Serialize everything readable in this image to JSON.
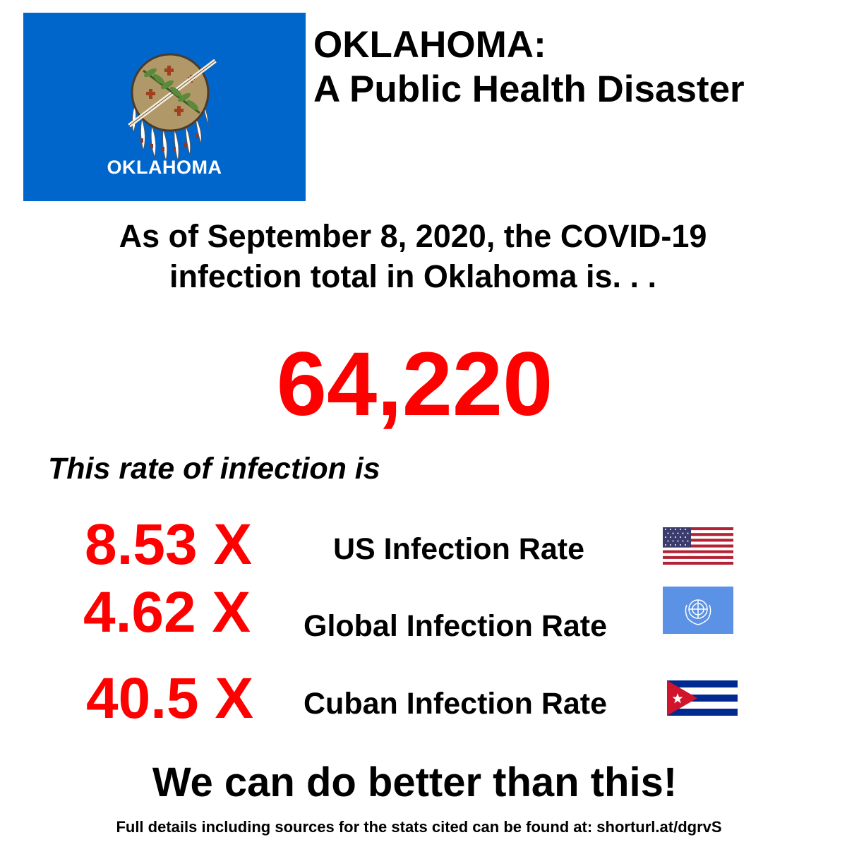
{
  "header": {
    "flag_caption": "OKLAHOMA",
    "title_line1": "OKLAHOMA:",
    "title_line2": "A Public Health Disaster"
  },
  "intro": {
    "line1": "As of September 8, 2020, the COVID-19",
    "line2": "infection total in Oklahoma is. . ."
  },
  "infection_total": "64,220",
  "rate_intro": "This rate of infection is",
  "comparisons": [
    {
      "multiplier": "8.53 X",
      "label": "US Infection Rate",
      "flag": "us-flag-icon"
    },
    {
      "multiplier": "4.62 X",
      "label": "Global Infection Rate",
      "flag": "un-flag-icon"
    },
    {
      "multiplier": "40.5 X",
      "label": "Cuban Infection Rate",
      "flag": "cuba-flag-icon"
    }
  ],
  "call_to_action": "We can do better than this!",
  "footer": "Full details including sources for the stats cited can be found at: shorturl.at/dgrvS",
  "colors": {
    "accent_red": "#ff0000",
    "oklahoma_blue": "#0066cc",
    "un_blue": "#5b92e5"
  }
}
